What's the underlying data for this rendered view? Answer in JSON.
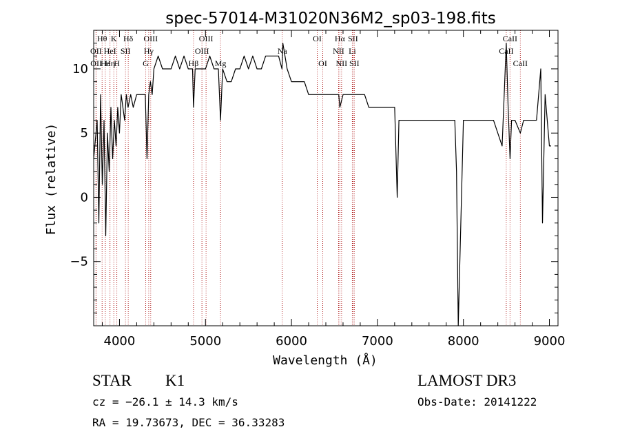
{
  "chart_data": {
    "type": "line",
    "title": "spec-57014-M31020N36M2_sp03-198.fits",
    "xlabel": "Wavelength (Å)",
    "ylabel": "Flux (relative)",
    "xlim": [
      3700,
      9100
    ],
    "ylim": [
      -10,
      13
    ],
    "xticks": [
      4000,
      5000,
      6000,
      7000,
      8000,
      9000
    ],
    "xtick_labels": [
      "4000",
      "5000",
      "6000",
      "7000",
      "8000",
      "9000"
    ],
    "yticks": [
      -5,
      0,
      5,
      10
    ],
    "ytick_labels": [
      "−5",
      "0",
      "5",
      "10"
    ],
    "series": [
      {
        "name": "flux",
        "x": [
          3700,
          3740,
          3760,
          3780,
          3800,
          3820,
          3840,
          3860,
          3880,
          3900,
          3920,
          3940,
          3960,
          3980,
          4000,
          4020,
          4040,
          4060,
          4080,
          4100,
          4130,
          4160,
          4200,
          4250,
          4300,
          4320,
          4340,
          4360,
          4380,
          4400,
          4450,
          4500,
          4550,
          4600,
          4650,
          4700,
          4750,
          4800,
          4850,
          4861,
          4880,
          4900,
          4950,
          5000,
          5050,
          5100,
          5150,
          5175,
          5200,
          5250,
          5300,
          5350,
          5400,
          5450,
          5500,
          5550,
          5600,
          5650,
          5700,
          5750,
          5800,
          5850,
          5890,
          5900,
          5950,
          6000,
          6050,
          6100,
          6150,
          6200,
          6250,
          6300,
          6350,
          6400,
          6450,
          6500,
          6550,
          6563,
          6600,
          6650,
          6700,
          6750,
          6800,
          6850,
          6900,
          6950,
          7000,
          7050,
          7100,
          7150,
          7200,
          7230,
          7250,
          7300,
          7350,
          7400,
          7450,
          7500,
          7550,
          7600,
          7650,
          7700,
          7750,
          7800,
          7850,
          7900,
          7920,
          7940,
          8000,
          8050,
          8100,
          8150,
          8200,
          8250,
          8300,
          8350,
          8400,
          8450,
          8498,
          8520,
          8542,
          8560,
          8600,
          8662,
          8700,
          8750,
          8800,
          8850,
          8900,
          8920,
          8950,
          9000,
          9020
        ],
        "y": [
          3,
          6,
          -2,
          8,
          1,
          6,
          -3,
          5,
          2,
          7,
          3,
          6,
          4,
          7,
          5,
          8,
          7,
          6,
          8,
          7,
          8,
          7,
          8,
          8,
          8,
          3,
          8,
          9,
          8,
          10,
          11,
          10,
          10,
          10,
          11,
          10,
          11,
          10,
          10,
          7,
          10,
          10,
          10,
          10,
          11,
          10,
          10,
          6,
          10,
          9,
          9,
          10,
          10,
          11,
          10,
          11,
          10,
          10,
          11,
          11,
          11,
          11,
          10,
          12,
          10,
          9,
          9,
          9,
          9,
          8,
          8,
          8,
          8,
          8,
          8,
          8,
          8,
          7,
          8,
          8,
          8,
          8,
          8,
          8,
          7,
          7,
          7,
          7,
          7,
          7,
          7,
          0,
          6,
          6,
          6,
          6,
          6,
          6,
          6,
          6,
          6,
          6,
          6,
          6,
          6,
          6,
          2,
          -10,
          6,
          6,
          6,
          6,
          6,
          6,
          6,
          6,
          5,
          4,
          12,
          7,
          3,
          6,
          6,
          5,
          6,
          6,
          6,
          6,
          10,
          -2,
          8,
          4,
          4
        ]
      }
    ],
    "line_markers": [
      {
        "label": "Hθ",
        "x": 3798,
        "row": 0
      },
      {
        "label": "OII",
        "x": 3727,
        "row": 1
      },
      {
        "label": "OII",
        "x": 3729,
        "row": 2
      },
      {
        "label": "Hε",
        "x": 3835,
        "row": 2
      },
      {
        "label": "K",
        "x": 3934,
        "row": 0
      },
      {
        "label": "HeI",
        "x": 3889,
        "row": 1
      },
      {
        "label": "Hη",
        "x": 3889,
        "row": 2
      },
      {
        "label": "H",
        "x": 3969,
        "row": 2
      },
      {
        "label": "SII",
        "x": 4070,
        "row": 1
      },
      {
        "label": "Hδ",
        "x": 4102,
        "row": 0
      },
      {
        "label": "OIII",
        "x": 4363,
        "row": 0
      },
      {
        "label": "Hγ",
        "x": 4340,
        "row": 1
      },
      {
        "label": "G",
        "x": 4305,
        "row": 2
      },
      {
        "label": "OIII",
        "x": 5007,
        "row": 0
      },
      {
        "label": "OIII",
        "x": 4959,
        "row": 1
      },
      {
        "label": "Hβ",
        "x": 4861,
        "row": 2
      },
      {
        "label": "Mg",
        "x": 5175,
        "row": 2
      },
      {
        "label": "Na",
        "x": 5893,
        "row": 1
      },
      {
        "label": "OI",
        "x": 6300,
        "row": 0
      },
      {
        "label": "OI",
        "x": 6364,
        "row": 2
      },
      {
        "label": "Hα",
        "x": 6563,
        "row": 0
      },
      {
        "label": "NII",
        "x": 6548,
        "row": 1
      },
      {
        "label": "NII",
        "x": 6583,
        "row": 2
      },
      {
        "label": "SII",
        "x": 6716,
        "row": 0
      },
      {
        "label": "Li",
        "x": 6708,
        "row": 1
      },
      {
        "label": "SII",
        "x": 6731,
        "row": 2
      },
      {
        "label": "CaII",
        "x": 8542,
        "row": 0
      },
      {
        "label": "CaII",
        "x": 8498,
        "row": 1
      },
      {
        "label": "CaII",
        "x": 8662,
        "row": 2
      }
    ]
  },
  "info": {
    "class_label": "STAR",
    "subclass": "K1",
    "cz": "cz = −26.1 ± 14.3 km/s",
    "coords": "RA =  19.73673, DEC =  36.33283",
    "survey": "LAMOST DR3",
    "obs_date": "Obs-Date: 20141222"
  }
}
